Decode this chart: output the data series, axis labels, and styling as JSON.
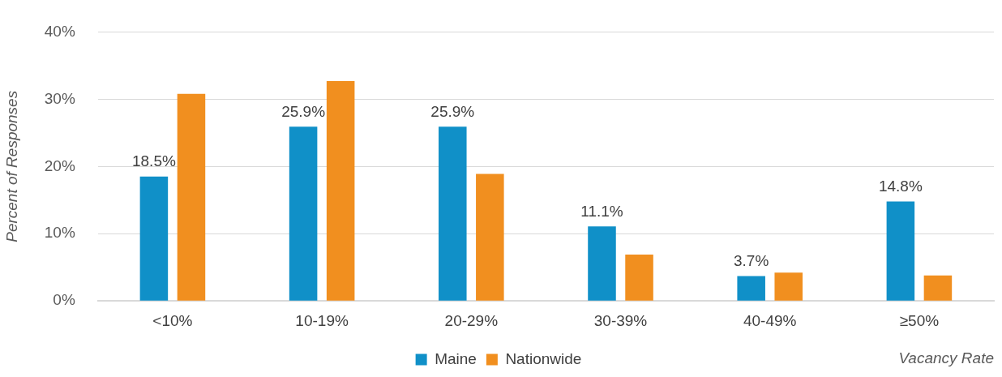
{
  "chart_data": {
    "type": "bar",
    "xlabel": "Vacancy Rate",
    "ylabel": "Percent of Responses",
    "categories": [
      "<10%",
      "10-19%",
      "20-29%",
      "30-39%",
      "40-49%",
      "≥50%"
    ],
    "series": [
      {
        "name": "Maine",
        "color": "#1090c8",
        "values": [
          18.5,
          25.9,
          25.9,
          11.1,
          3.7,
          14.8
        ],
        "value_labels": [
          "18.5%",
          "25.9%",
          "25.9%",
          "11.1%",
          "3.7%",
          "14.8%"
        ]
      },
      {
        "name": "Nationwide",
        "color": "#f18f1f",
        "values": [
          30.8,
          32.7,
          18.9,
          6.9,
          4.2,
          3.8
        ]
      }
    ],
    "ylim": [
      0,
      40
    ],
    "yticks": [
      {
        "value": 0,
        "label": "0%"
      },
      {
        "value": 10,
        "label": "10%"
      },
      {
        "value": 20,
        "label": "20%"
      },
      {
        "value": 30,
        "label": "30%"
      },
      {
        "value": 40,
        "label": "40%"
      }
    ],
    "grid": "y",
    "legend": "bottom"
  }
}
